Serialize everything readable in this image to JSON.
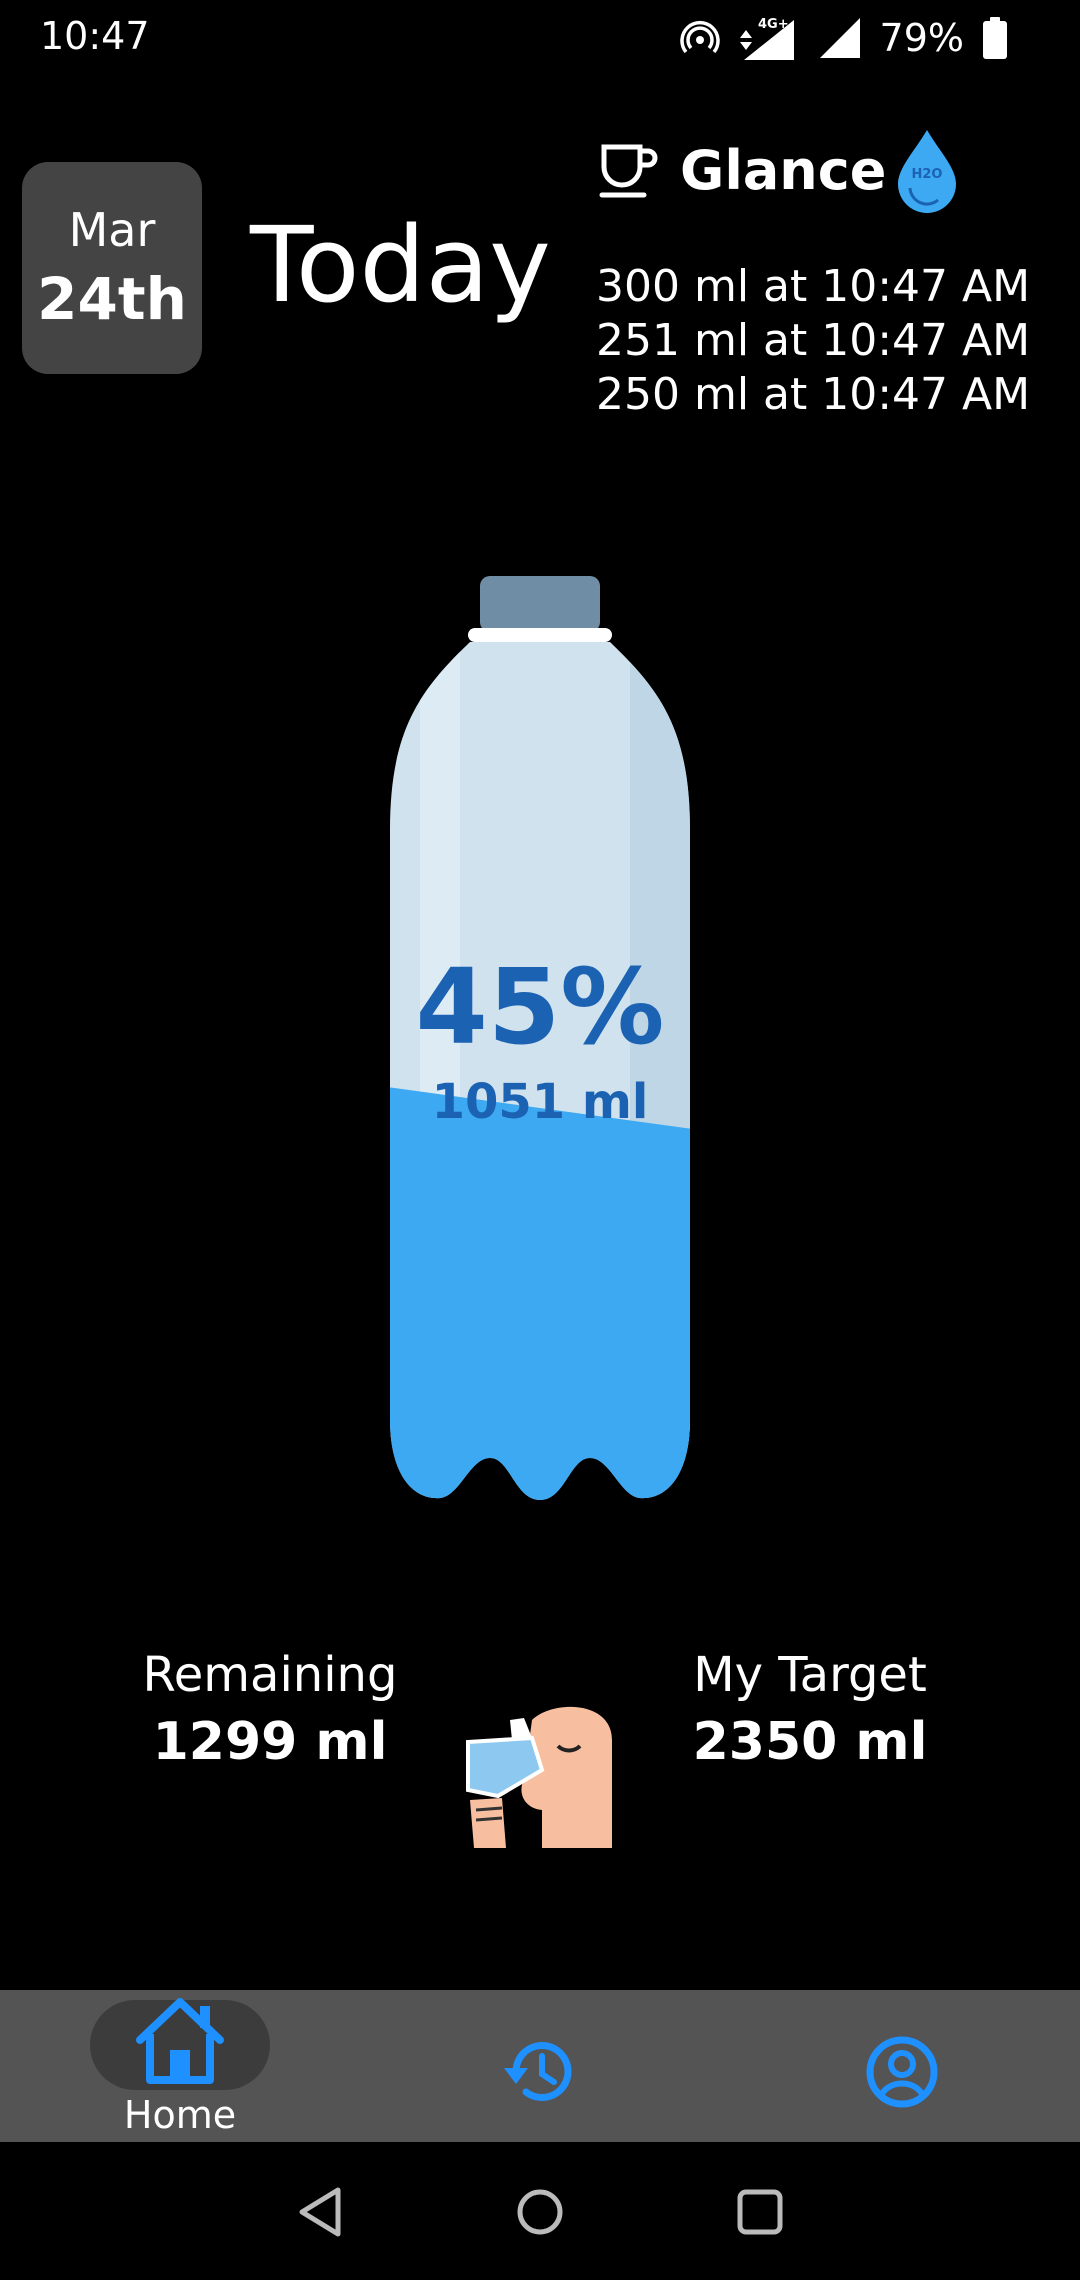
{
  "status_bar": {
    "time": "10:47",
    "network_label": "4G+",
    "battery": "79%"
  },
  "header": {
    "date_month": "Mar",
    "date_day": "24th",
    "title": "Today"
  },
  "glance": {
    "title": "Glance",
    "drop_icon_text": "H2O",
    "entries": [
      "300 ml at  10:47 AM",
      "251 ml at  10:47 AM",
      "250 ml at  10:47 AM"
    ]
  },
  "bottle": {
    "percent_text": "45%",
    "amount_text": "1051 ml",
    "fill_fraction": 0.45
  },
  "stats": {
    "remaining_label": "Remaining",
    "remaining_value": "1299 ml",
    "target_label": "My Target",
    "target_value": "2350 ml"
  },
  "nav": {
    "home_label": "Home"
  },
  "colors": {
    "accent": "#1e90ff",
    "water": "#3da9f2",
    "bottle_glass": "#cfe2ee",
    "percent_text": "#1c62b3",
    "nav_bg": "#545454",
    "date_card_bg": "#444444"
  },
  "icons": {
    "glance": "cup-icon",
    "drop": "water-drop-icon",
    "home": "home-icon",
    "history": "history-icon",
    "profile": "profile-icon"
  }
}
